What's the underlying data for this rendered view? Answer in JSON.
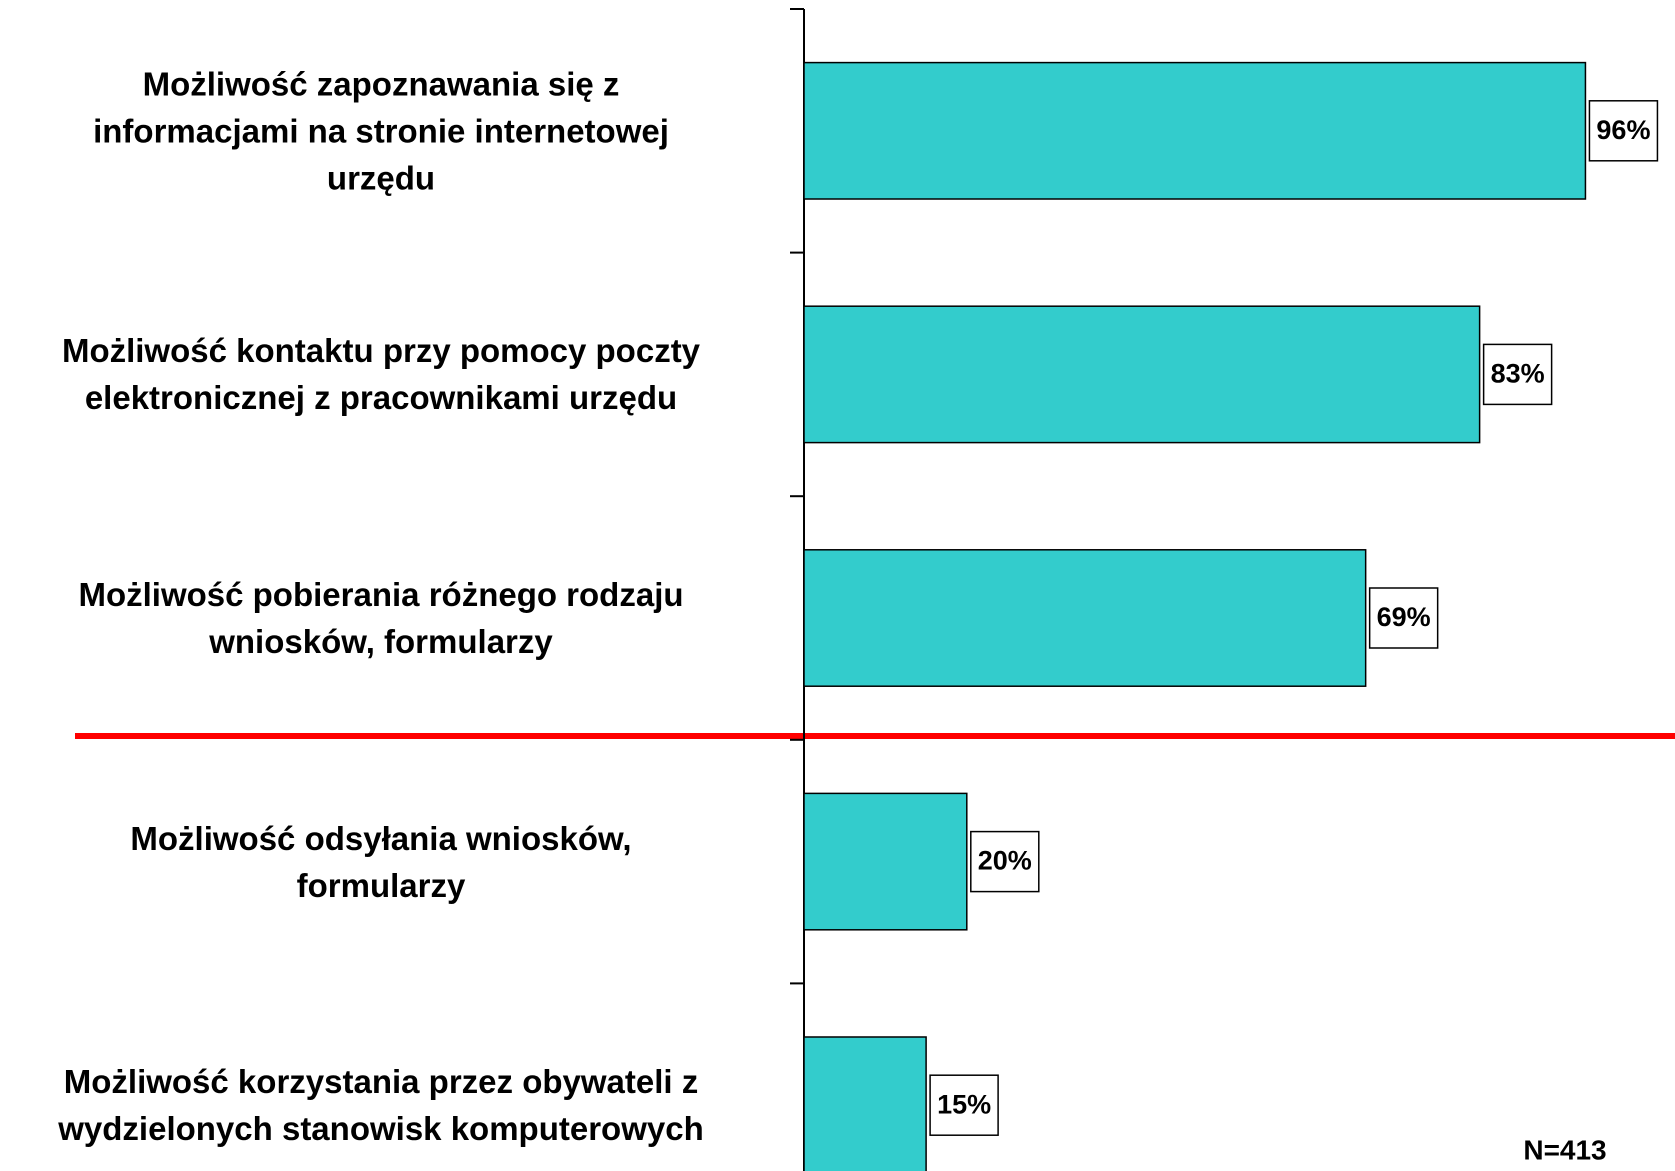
{
  "chart_data": {
    "type": "barh",
    "categories": [
      "Możliwość zapoznawania się z\ninformacjami na stronie internetowej\nurzędu",
      "Możliwość kontaktu przy pomocy poczty\nelektronicznej z pracownikami urzędu",
      "Możliwość pobierania różnego rodzaju\nwniosków, formularzy",
      "Możliwość odsyłania wniosków,\nformularzy",
      "Możliwość korzystania przez obywateli z\nwydzielonych stanowisk komputerowych"
    ],
    "values": [
      96,
      83,
      69,
      20,
      15
    ],
    "value_labels": [
      "96%",
      "83%",
      "69%",
      "20%",
      "15%"
    ],
    "color": "#33cccc",
    "xlim": [
      0,
      100
    ],
    "annotation": "N=413"
  }
}
